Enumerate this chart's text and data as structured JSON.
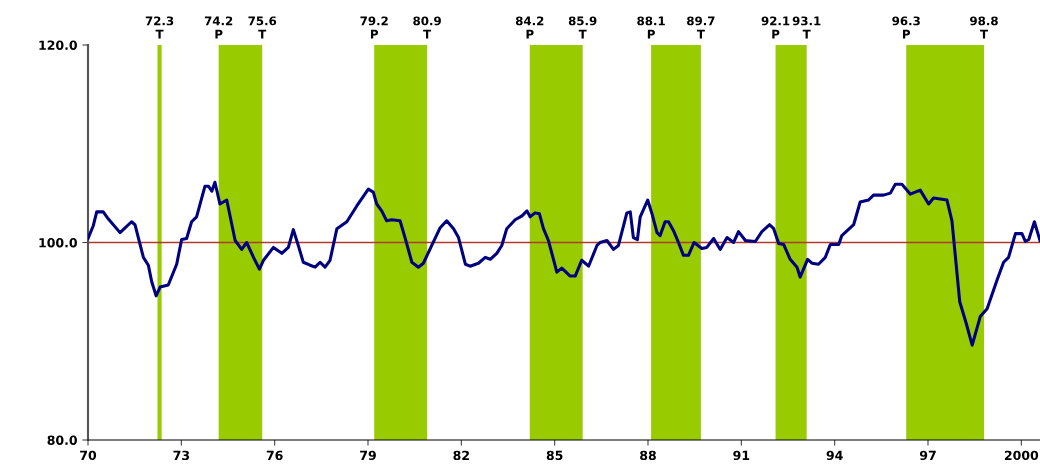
{
  "chart_data": {
    "type": "line",
    "x": [
      1970.0,
      1970.17,
      1970.28,
      1970.49,
      1970.65,
      1971.03,
      1971.4,
      1971.51,
      1971.78,
      1971.94,
      1972.05,
      1972.19,
      1972.32,
      1972.58,
      1972.85,
      1973.01,
      1973.17,
      1973.33,
      1973.49,
      1973.76,
      1973.87,
      1973.98,
      1974.08,
      1974.24,
      1974.46,
      1974.73,
      1974.94,
      1975.1,
      1975.32,
      1975.51,
      1975.64,
      1975.96,
      1976.23,
      1976.44,
      1976.6,
      1976.76,
      1976.92,
      1977.14,
      1977.3,
      1977.46,
      1977.62,
      1977.78,
      1978.0,
      1978.32,
      1978.64,
      1979.01,
      1979.17,
      1979.28,
      1979.44,
      1979.6,
      1979.76,
      1980.03,
      1980.19,
      1980.41,
      1980.62,
      1980.78,
      1981.05,
      1981.32,
      1981.53,
      1981.75,
      1981.91,
      1982.13,
      1982.28,
      1982.55,
      1982.77,
      1982.93,
      1983.14,
      1983.3,
      1983.46,
      1983.73,
      1983.95,
      1984.11,
      1984.21,
      1984.37,
      1984.51,
      1984.64,
      1984.8,
      1985.07,
      1985.23,
      1985.5,
      1985.66,
      1985.87,
      1986.09,
      1986.36,
      1986.46,
      1986.68,
      1986.89,
      1987.05,
      1987.32,
      1987.43,
      1987.53,
      1987.66,
      1987.75,
      1987.99,
      1988.13,
      1988.29,
      1988.39,
      1988.55,
      1988.66,
      1988.82,
      1988.98,
      1989.14,
      1989.3,
      1989.48,
      1989.73,
      1989.89,
      1990.11,
      1990.32,
      1990.54,
      1990.75,
      1990.91,
      1991.13,
      1991.45,
      1991.66,
      1991.91,
      1992.04,
      1992.2,
      1992.36,
      1992.57,
      1992.79,
      1992.89,
      1993.13,
      1993.27,
      1993.48,
      1993.7,
      1993.86,
      1994.13,
      1994.23,
      1994.61,
      1994.82,
      1995.09,
      1995.25,
      1995.57,
      1995.79,
      1995.95,
      1996.16,
      1996.43,
      1996.75,
      1997.02,
      1997.18,
      1997.61,
      1997.77,
      1998.02,
      1998.23,
      1998.42,
      1998.68,
      1998.9,
      1999.22,
      1999.43,
      1999.59,
      1999.81,
      2000.02,
      2000.13,
      2000.24,
      2000.42,
      2000.6
    ],
    "series": [
      {
        "color": "#000080",
        "values": [
          100.4,
          101.7,
          103.1,
          103.1,
          102.4,
          101.0,
          102.1,
          101.8,
          98.5,
          97.7,
          96.0,
          94.6,
          95.5,
          95.7,
          97.8,
          100.3,
          100.4,
          102.1,
          102.6,
          105.7,
          105.7,
          105.2,
          106.1,
          103.9,
          104.3,
          100.2,
          99.3,
          100.0,
          98.5,
          97.3,
          98.2,
          99.5,
          98.9,
          99.5,
          101.3,
          99.7,
          98.0,
          97.7,
          97.5,
          98.0,
          97.5,
          98.2,
          101.4,
          102.1,
          103.7,
          105.4,
          105.1,
          103.9,
          103.2,
          102.2,
          102.3,
          102.2,
          100.5,
          98.0,
          97.5,
          97.9,
          99.7,
          101.5,
          102.2,
          101.4,
          100.5,
          97.8,
          97.6,
          97.9,
          98.5,
          98.3,
          98.9,
          99.7,
          101.4,
          102.3,
          102.7,
          103.2,
          102.6,
          103.0,
          102.9,
          101.4,
          100.2,
          97.0,
          97.4,
          96.6,
          96.6,
          98.2,
          97.6,
          99.7,
          100.0,
          100.2,
          99.3,
          99.7,
          103.0,
          103.1,
          100.5,
          100.3,
          102.6,
          104.3,
          102.9,
          101.0,
          100.7,
          102.1,
          102.1,
          101.2,
          100.0,
          98.7,
          98.7,
          100.0,
          99.4,
          99.5,
          100.4,
          99.3,
          100.5,
          100.0,
          101.1,
          100.2,
          100.1,
          101.1,
          101.8,
          101.4,
          99.9,
          99.8,
          98.3,
          97.5,
          96.5,
          98.3,
          97.9,
          97.8,
          98.5,
          99.8,
          99.8,
          100.7,
          101.8,
          104.1,
          104.3,
          104.8,
          104.8,
          105.0,
          105.9,
          105.9,
          104.9,
          105.3,
          103.9,
          104.5,
          104.3,
          102.2,
          94.0,
          91.8,
          89.6,
          92.5,
          93.3,
          96.2,
          98.0,
          98.5,
          100.9,
          100.9,
          100.1,
          100.3,
          102.1,
          100.2
        ]
      }
    ],
    "xlim": [
      1970,
      2000.6
    ],
    "xticks": [
      {
        "value": 1970,
        "label": "70"
      },
      {
        "value": 1973,
        "label": "73"
      },
      {
        "value": 1976,
        "label": "76"
      },
      {
        "value": 1979,
        "label": "79"
      },
      {
        "value": 1982,
        "label": "82"
      },
      {
        "value": 1985,
        "label": "85"
      },
      {
        "value": 1988,
        "label": "88"
      },
      {
        "value": 1991,
        "label": "91"
      },
      {
        "value": 1994,
        "label": "94"
      },
      {
        "value": 1997,
        "label": "97"
      },
      2000
    ],
    "ylim": [
      80,
      120
    ],
    "yticks": [
      {
        "value": 80,
        "label": "80.0"
      },
      {
        "value": 100,
        "label": "100.0"
      },
      {
        "value": 120,
        "label": "120.0"
      }
    ],
    "x2lim": [
      70,
      100.6
    ],
    "x2ticks": [
      {
        "value": 72.3,
        "label": "72.3\nT"
      },
      {
        "value": 74.2,
        "label": "74.2\nP"
      },
      {
        "value": 75.6,
        "label": "75.6\nT"
      },
      {
        "value": 79.2,
        "label": "79.2\nP"
      },
      {
        "value": 80.9,
        "label": "80.9\nT"
      },
      {
        "value": 84.2,
        "label": "84.2\nP"
      },
      {
        "value": 85.9,
        "label": "85.9\nT"
      },
      {
        "value": 88.1,
        "label": "88.1\nP"
      },
      {
        "value": 89.7,
        "label": "89.7\nT"
      },
      {
        "value": 92.1,
        "label": "92.1\nP"
      },
      {
        "value": 93.1,
        "label": "93.1\nT"
      },
      {
        "value": 96.3,
        "label": "96.3\nP"
      },
      {
        "value": 98.8,
        "label": "98.8\nT"
      }
    ],
    "bands": [
      {
        "axis": "x",
        "from": 1974.2,
        "to": 1975.6,
        "color": "#99cc00"
      },
      {
        "axis": "x",
        "from": 1979.2,
        "to": 1980.9,
        "color": "#99cc00"
      },
      {
        "axis": "x",
        "from": 1984.2,
        "to": 1985.9,
        "color": "#99cc00"
      },
      {
        "axis": "x",
        "from": 1988.1,
        "to": 1989.7,
        "color": "#99cc00"
      },
      {
        "axis": "x",
        "from": 1992.1,
        "to": 1993.1,
        "color": "#99cc00"
      },
      {
        "axis": "x",
        "from": 1996.3,
        "to": 1998.8,
        "color": "#99cc00"
      }
    ],
    "ref_lines": [
      {
        "axis": "x",
        "value": 1972.3,
        "color": "#99cc00"
      },
      {
        "axis": "y",
        "value": 100,
        "color": "#b03a2e"
      }
    ],
    "grid": false,
    "legend": false,
    "marker": "none",
    "line_style": "solid"
  }
}
